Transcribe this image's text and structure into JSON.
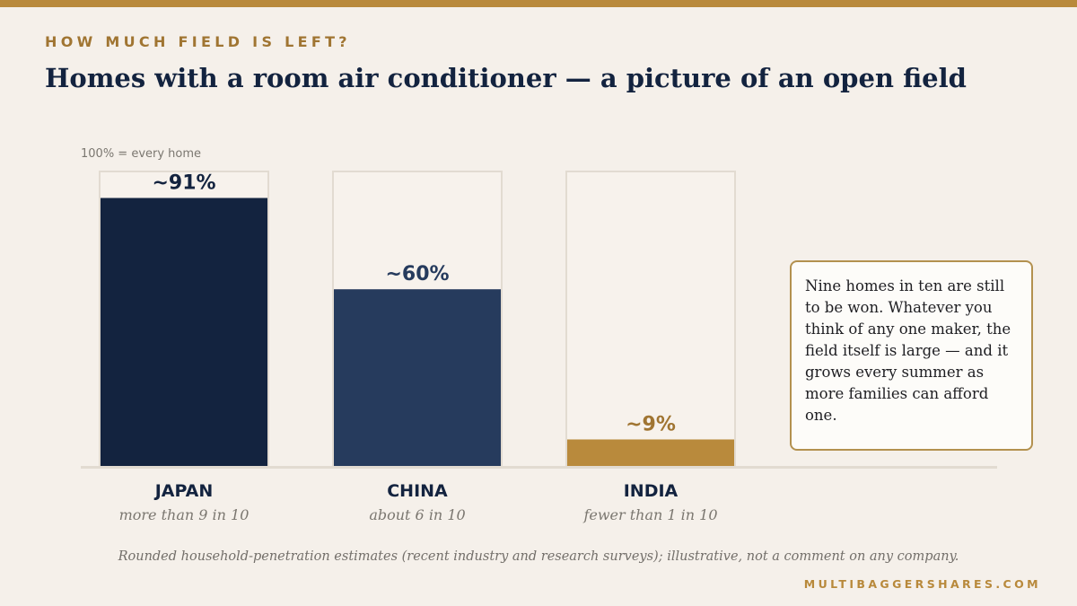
{
  "kicker": "HOW MUCH FIELD IS LEFT?",
  "title": "Homes with a room air conditioner — a picture of an open field",
  "scale_note": "100% = every home",
  "callout": "Nine homes in ten are still to be won. Whatever you think of any one maker, the field itself is large — and it grows every summer as more families can afford one.",
  "footnote": "Rounded household-penetration estimates (recent industry and research surveys); illustrative, not a comment on any company.",
  "brand": "MULTIBAGGERSHARES.COM",
  "chart_data": {
    "type": "bar",
    "title": "",
    "xlabel": "",
    "ylabel": "",
    "ylim": [
      0,
      100
    ],
    "grid": false,
    "categories": [
      "JAPAN",
      "CHINA",
      "INDIA"
    ],
    "sublabels": [
      "more than 9 in 10",
      "about 6 in 10",
      "fewer than 1 in 10"
    ],
    "values": [
      91,
      60,
      9
    ],
    "value_labels": [
      "~91%",
      "~60%",
      "~9%"
    ],
    "colors": [
      "#13233f",
      "#263b5d",
      "#b98a3c"
    ],
    "label_colors": [
      "#13233f",
      "#263b5d",
      "#a07532"
    ],
    "track_fill": "#f7f2ec",
    "track_border": "#e2dbd1"
  }
}
